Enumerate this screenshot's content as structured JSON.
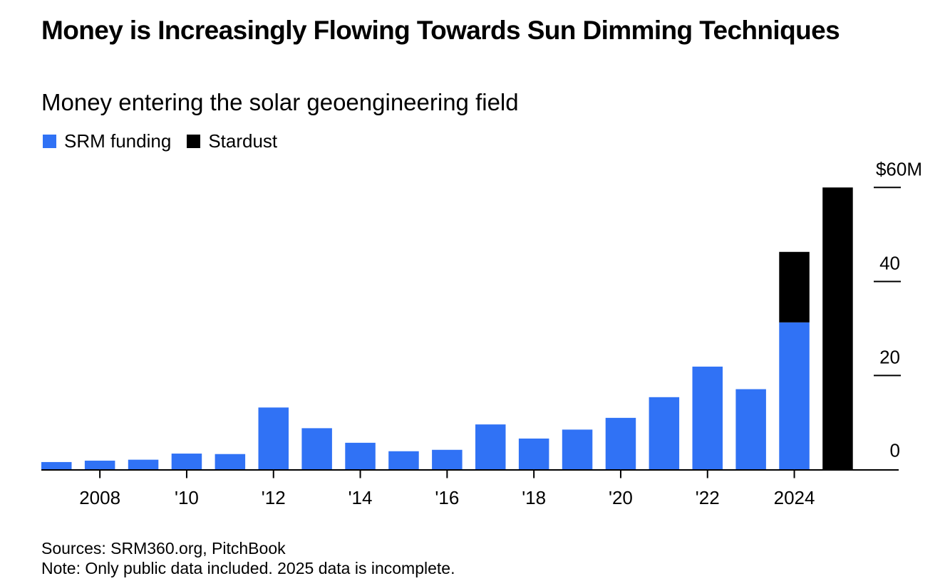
{
  "chart_data": {
    "type": "bar",
    "stacked": true,
    "title": "Money is Increasingly Flowing Towards Sun Dimming Techniques",
    "subtitle": "Money entering the solar geoengineering field",
    "xlabel": "",
    "ylabel": "",
    "ylim": [
      0,
      60
    ],
    "y_ticks": [
      {
        "value": 0,
        "label": "0"
      },
      {
        "value": 20,
        "label": "20"
      },
      {
        "value": 40,
        "label": "40"
      },
      {
        "value": 60,
        "label": "$60M"
      }
    ],
    "x": [
      2007,
      2008,
      2009,
      2010,
      2011,
      2012,
      2013,
      2014,
      2015,
      2016,
      2017,
      2018,
      2019,
      2020,
      2021,
      2022,
      2023,
      2024,
      2025
    ],
    "x_ticks": [
      {
        "year": 2008,
        "label": "2008"
      },
      {
        "year": 2010,
        "label": "'10"
      },
      {
        "year": 2012,
        "label": "'12"
      },
      {
        "year": 2014,
        "label": "'14"
      },
      {
        "year": 2016,
        "label": "'16"
      },
      {
        "year": 2018,
        "label": "'18"
      },
      {
        "year": 2020,
        "label": "'20"
      },
      {
        "year": 2022,
        "label": "'22"
      },
      {
        "year": 2024,
        "label": "2024"
      }
    ],
    "series": [
      {
        "name": "SRM funding",
        "color": "#3072f5",
        "values": [
          1.6,
          1.9,
          2.1,
          3.4,
          3.3,
          13.2,
          8.8,
          5.7,
          3.9,
          4.2,
          9.6,
          6.6,
          8.5,
          11.0,
          15.4,
          21.9,
          17.1,
          31.3,
          0
        ]
      },
      {
        "name": "Stardust",
        "color": "#000000",
        "values": [
          0,
          0,
          0,
          0,
          0,
          0,
          0,
          0,
          0,
          0,
          0,
          0,
          0,
          0,
          0,
          0,
          0,
          15.0,
          60.0
        ]
      }
    ],
    "legend_position": "top-left",
    "grid": false
  },
  "footer": {
    "sources": "Sources: SRM360.org, PitchBook",
    "note": "Note: Only public data included. 2025 data is incomplete."
  }
}
